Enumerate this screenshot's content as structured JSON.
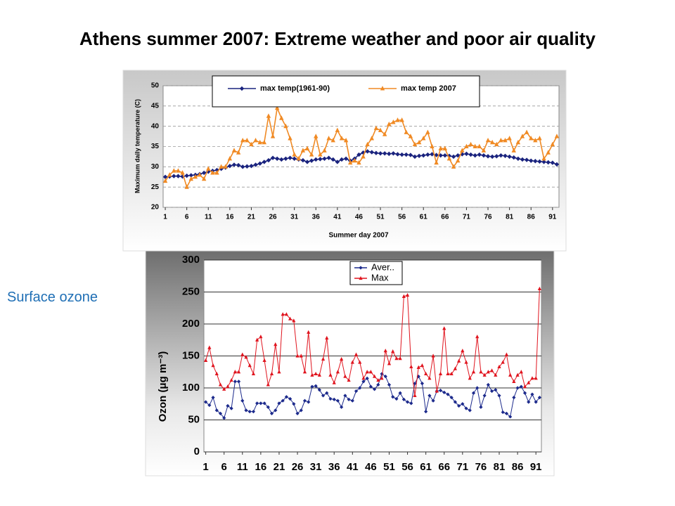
{
  "title": "Athens summer 2007: Extreme weather and poor air quality",
  "side_label": "Surface ozone",
  "chart_data": [
    {
      "type": "line",
      "ylabel": "Maximum daily temperature (C)",
      "xlabel": "Summer day 2007",
      "x": [
        1,
        2,
        3,
        4,
        5,
        6,
        7,
        8,
        9,
        10,
        11,
        12,
        13,
        14,
        15,
        16,
        17,
        18,
        19,
        20,
        21,
        22,
        23,
        24,
        25,
        26,
        27,
        28,
        29,
        30,
        31,
        32,
        33,
        34,
        35,
        36,
        37,
        38,
        39,
        40,
        41,
        42,
        43,
        44,
        45,
        46,
        47,
        48,
        49,
        50,
        51,
        52,
        53,
        54,
        55,
        56,
        57,
        58,
        59,
        60,
        61,
        62,
        63,
        64,
        65,
        66,
        67,
        68,
        69,
        70,
        71,
        72,
        73,
        74,
        75,
        76,
        77,
        78,
        79,
        80,
        81,
        82,
        83,
        84,
        85,
        86,
        87,
        88,
        89,
        90,
        91,
        92
      ],
      "xlim": [
        0.5,
        92.5
      ],
      "xticks": [
        1,
        6,
        11,
        16,
        21,
        26,
        31,
        36,
        41,
        46,
        51,
        56,
        61,
        66,
        71,
        76,
        81,
        86,
        91
      ],
      "ylim": [
        20,
        50
      ],
      "yticks": [
        20,
        25,
        30,
        35,
        40,
        45,
        50
      ],
      "grid": true,
      "series": [
        {
          "name": "max temp(1961-90)",
          "color": "#1a237e",
          "marker": "diamond",
          "values": [
            27.5,
            27.6,
            27.7,
            27.7,
            27.6,
            27.8,
            27.9,
            28,
            28.2,
            28.5,
            28.8,
            29,
            29.2,
            29.5,
            29.8,
            30.2,
            30.5,
            30.4,
            30,
            30.1,
            30.2,
            30.5,
            30.8,
            31.2,
            31.6,
            32.2,
            32,
            31.8,
            32,
            32.2,
            32,
            31.8,
            31.6,
            31.2,
            31.5,
            31.8,
            31.9,
            32,
            32.2,
            31.8,
            31.2,
            31.8,
            32,
            31.5,
            32,
            33,
            33.5,
            33.8,
            33.6,
            33.4,
            33.3,
            33.3,
            33.2,
            33.3,
            33.1,
            33,
            33,
            32.9,
            32.5,
            32.7,
            32.8,
            33,
            33.1,
            32.9,
            32.8,
            32.8,
            32.7,
            32.5,
            32.8,
            33.1,
            33.2,
            33,
            32.8,
            33,
            32.8,
            32.6,
            32.5,
            32.6,
            32.8,
            32.7,
            32.5,
            32.3,
            32,
            31.8,
            31.7,
            31.5,
            31.4,
            31.3,
            31.2,
            31.1,
            31,
            30.6
          ]
        },
        {
          "name": "max temp 2007",
          "color": "#f08a24",
          "marker": "triangle",
          "values": [
            26.5,
            28,
            29,
            29,
            28.5,
            25,
            27,
            27.5,
            28,
            27,
            29.5,
            28.5,
            28.5,
            30,
            30,
            32,
            34,
            33.5,
            36.5,
            36.5,
            35.5,
            36.5,
            36,
            36,
            42.5,
            37.5,
            44.5,
            42,
            40,
            37,
            33,
            32,
            34,
            34.5,
            33,
            37.5,
            33,
            34,
            37,
            36.5,
            39,
            37,
            36.5,
            31,
            31.5,
            31,
            32.5,
            35.5,
            37,
            39.5,
            39,
            38,
            40.5,
            41,
            41.5,
            41.5,
            38.5,
            37.5,
            35.5,
            36,
            37,
            38.5,
            35,
            31,
            34.5,
            34.5,
            32,
            30,
            31.5,
            34,
            35,
            35.5,
            35,
            35,
            34,
            36.5,
            36,
            35.5,
            36.5,
            36.5,
            37,
            34,
            36,
            37.5,
            38.5,
            37,
            36.5,
            37,
            32,
            33.5,
            35.5,
            37.5
          ]
        }
      ]
    },
    {
      "type": "line",
      "ylabel": "Ozon (μg m⁻³)",
      "x": [
        1,
        2,
        3,
        4,
        5,
        6,
        7,
        8,
        9,
        10,
        11,
        12,
        13,
        14,
        15,
        16,
        17,
        18,
        19,
        20,
        21,
        22,
        23,
        24,
        25,
        26,
        27,
        28,
        29,
        30,
        31,
        32,
        33,
        34,
        35,
        36,
        37,
        38,
        39,
        40,
        41,
        42,
        43,
        44,
        45,
        46,
        47,
        48,
        49,
        50,
        51,
        52,
        53,
        54,
        55,
        56,
        57,
        58,
        59,
        60,
        61,
        62,
        63,
        64,
        65,
        66,
        67,
        68,
        69,
        70,
        71,
        72,
        73,
        74,
        75,
        76,
        77,
        78,
        79,
        80,
        81,
        82,
        83,
        84,
        85,
        86,
        87,
        88,
        89,
        90,
        91,
        92
      ],
      "xlim": [
        0.5,
        92.5
      ],
      "xticks": [
        1,
        6,
        11,
        16,
        21,
        26,
        31,
        36,
        41,
        46,
        51,
        56,
        61,
        66,
        71,
        76,
        81,
        86,
        91
      ],
      "ylim": [
        0,
        300
      ],
      "yticks": [
        0,
        50,
        100,
        150,
        200,
        250,
        300
      ],
      "grid": true,
      "series": [
        {
          "name": "Aver..",
          "color": "#1c2a8c",
          "marker": "diamond",
          "values": [
            78,
            73,
            85,
            65,
            60,
            53,
            72,
            68,
            110,
            110,
            80,
            65,
            63,
            63,
            76,
            76,
            76,
            70,
            60,
            65,
            76,
            80,
            86,
            83,
            75,
            60,
            65,
            80,
            78,
            102,
            103,
            97,
            88,
            92,
            83,
            82,
            80,
            70,
            88,
            82,
            80,
            95,
            100,
            110,
            115,
            102,
            98,
            105,
            122,
            118,
            105,
            86,
            83,
            92,
            82,
            78,
            76,
            107,
            118,
            107,
            63,
            88,
            80,
            95,
            96,
            93,
            90,
            85,
            78,
            72,
            75,
            68,
            65,
            92,
            100,
            70,
            88,
            105,
            95,
            97,
            88,
            62,
            60,
            55,
            85,
            100,
            102,
            92,
            78,
            90,
            78,
            85
          ]
        },
        {
          "name": "Max",
          "color": "#e0141e",
          "marker": "triangle",
          "values": [
            143,
            163,
            135,
            122,
            105,
            98,
            102,
            112,
            125,
            125,
            152,
            148,
            135,
            122,
            175,
            180,
            143,
            105,
            122,
            168,
            125,
            215,
            215,
            208,
            205,
            150,
            150,
            125,
            187,
            120,
            122,
            120,
            145,
            178,
            120,
            108,
            125,
            145,
            118,
            112,
            140,
            152,
            140,
            115,
            125,
            125,
            118,
            112,
            115,
            158,
            138,
            157,
            146,
            146,
            243,
            245,
            133,
            88,
            132,
            135,
            122,
            115,
            150,
            95,
            122,
            193,
            122,
            122,
            130,
            142,
            158,
            140,
            115,
            125,
            180,
            125,
            120,
            125,
            127,
            120,
            133,
            140,
            152,
            120,
            110,
            120,
            125,
            102,
            108,
            115,
            115,
            255
          ]
        }
      ]
    }
  ]
}
